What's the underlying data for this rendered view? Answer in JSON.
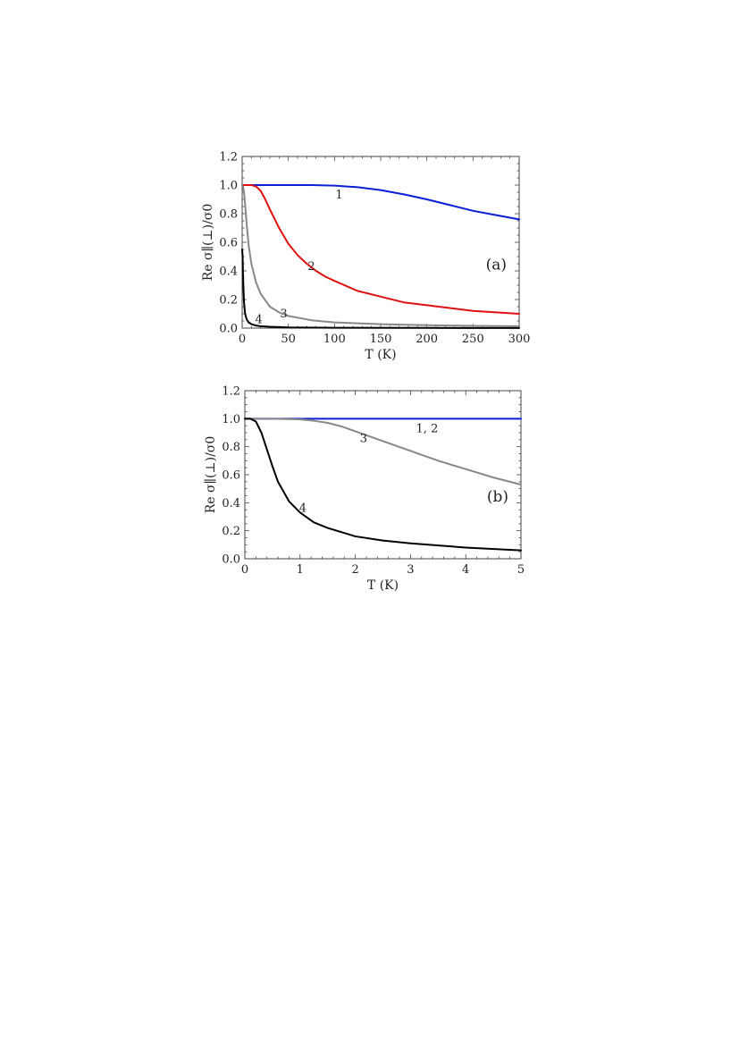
{
  "chart_data": [
    {
      "type": "line",
      "panel_label": "(a)",
      "xlabel": "T (K)",
      "ylabel": "Re σ∥(⊥)/σ0",
      "xlim": [
        0,
        300
      ],
      "ylim": [
        0,
        1.2
      ],
      "xticks": [
        0,
        50,
        100,
        150,
        200,
        250,
        300
      ],
      "yticks": [
        0.0,
        0.2,
        0.4,
        0.6,
        0.8,
        1.0,
        1.2
      ],
      "xtick_labels": [
        "0",
        "50",
        "100",
        "150",
        "200",
        "250",
        "300"
      ],
      "ytick_labels": [
        "0.0",
        "0.2",
        "0.4",
        "0.6",
        "0.8",
        "1.0",
        "1.2"
      ],
      "grid": false,
      "series": [
        {
          "label": "1",
          "color": "#0a1fd6",
          "x": [
            0,
            25,
            50,
            75,
            100,
            125,
            150,
            175,
            200,
            225,
            250,
            275,
            300
          ],
          "y": [
            1.0,
            1.0,
            1.0,
            1.0,
            0.996,
            0.985,
            0.965,
            0.935,
            0.9,
            0.86,
            0.82,
            0.79,
            0.76
          ],
          "label_at": [
            105,
            0.93
          ]
        },
        {
          "label": "2",
          "color": "#e01010",
          "x": [
            0,
            10,
            15,
            20,
            25,
            30,
            40,
            50,
            60,
            70,
            80,
            90,
            100,
            125,
            150,
            175,
            200,
            250,
            300
          ],
          "y": [
            1.0,
            1.0,
            0.99,
            0.96,
            0.9,
            0.83,
            0.7,
            0.59,
            0.51,
            0.45,
            0.4,
            0.36,
            0.33,
            0.26,
            0.22,
            0.18,
            0.16,
            0.12,
            0.1
          ],
          "label_at": [
            75,
            0.43
          ]
        },
        {
          "label": "3",
          "color": "#888888",
          "x": [
            0,
            1,
            2,
            3,
            4,
            5,
            7,
            10,
            15,
            20,
            30,
            40,
            50,
            75,
            100,
            150,
            200,
            250,
            300
          ],
          "y": [
            1.0,
            0.99,
            0.95,
            0.88,
            0.8,
            0.72,
            0.58,
            0.45,
            0.32,
            0.24,
            0.15,
            0.11,
            0.085,
            0.055,
            0.04,
            0.027,
            0.02,
            0.016,
            0.013
          ],
          "label_at": [
            45,
            0.1
          ]
        },
        {
          "label": "4",
          "color": "#000000",
          "x": [
            0,
            0.5,
            1,
            2,
            3,
            4,
            5,
            7,
            10,
            15,
            20,
            30,
            50,
            100,
            200,
            300
          ],
          "y": [
            0.55,
            0.5,
            0.35,
            0.18,
            0.11,
            0.08,
            0.06,
            0.04,
            0.028,
            0.018,
            0.013,
            0.009,
            0.005,
            0.0025,
            0.0013,
            0.0008
          ],
          "label_at": [
            18,
            0.06
          ]
        }
      ]
    },
    {
      "type": "line",
      "panel_label": "(b)",
      "xlabel": "T (K)",
      "ylabel": "Re σ∥(⊥)/σ0",
      "xlim": [
        0,
        5
      ],
      "ylim": [
        0,
        1.2
      ],
      "xticks": [
        0,
        1,
        2,
        3,
        4,
        5
      ],
      "yticks": [
        0.0,
        0.2,
        0.4,
        0.6,
        0.8,
        1.0,
        1.2
      ],
      "xtick_labels": [
        "0",
        "1",
        "2",
        "3",
        "4",
        "5"
      ],
      "ytick_labels": [
        "0.0",
        "0.2",
        "0.4",
        "0.6",
        "0.8",
        "1.0",
        "1.2"
      ],
      "grid": false,
      "series": [
        {
          "label": "1, 2",
          "color": "#0a1fd6",
          "x": [
            0,
            1,
            2,
            3,
            4,
            5
          ],
          "y": [
            1.0,
            1.0,
            1.0,
            1.0,
            1.0,
            1.0
          ],
          "label_at": [
            3.3,
            0.93
          ]
        },
        {
          "label": "3",
          "color": "#888888",
          "x": [
            0,
            0.5,
            1,
            1.25,
            1.5,
            1.75,
            2,
            2.5,
            3,
            3.5,
            4,
            4.5,
            5
          ],
          "y": [
            1.0,
            1.0,
            0.995,
            0.985,
            0.97,
            0.945,
            0.91,
            0.84,
            0.77,
            0.7,
            0.64,
            0.58,
            0.53
          ],
          "label_at": [
            2.15,
            0.86
          ]
        },
        {
          "label": "4",
          "color": "#000000",
          "x": [
            0,
            0.1,
            0.2,
            0.3,
            0.4,
            0.5,
            0.6,
            0.8,
            1.0,
            1.25,
            1.5,
            2,
            2.5,
            3,
            4,
            5
          ],
          "y": [
            1.0,
            1.0,
            0.98,
            0.9,
            0.78,
            0.66,
            0.55,
            0.41,
            0.33,
            0.26,
            0.22,
            0.16,
            0.13,
            0.11,
            0.08,
            0.06
          ],
          "label_at": [
            1.05,
            0.36
          ]
        }
      ]
    }
  ]
}
